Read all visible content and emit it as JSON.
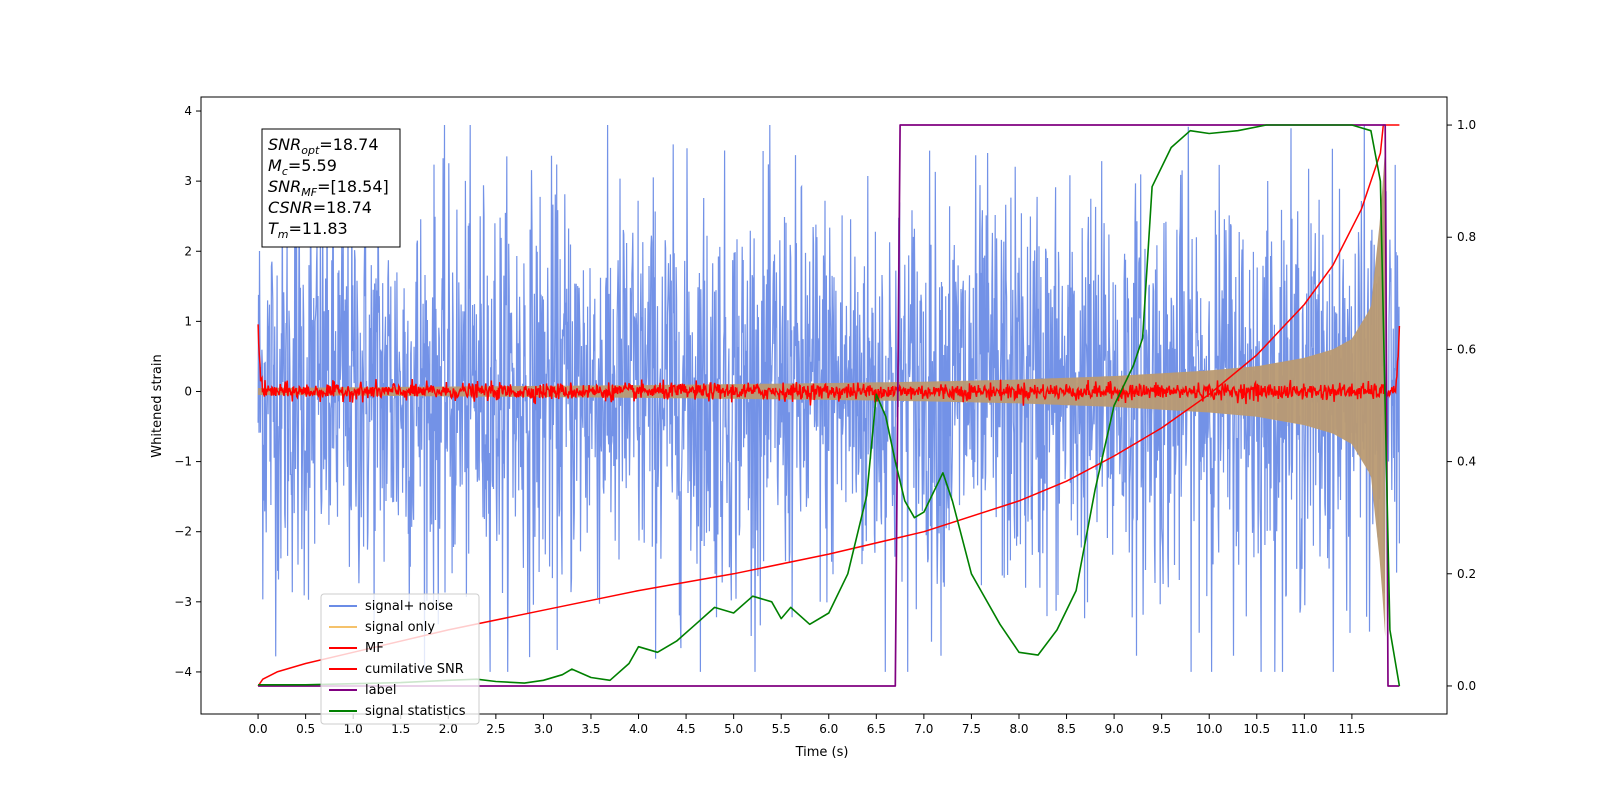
{
  "chart_data": {
    "type": "line",
    "xlabel": "Time (s)",
    "ylabel_left": "Whitened strain",
    "ylabel_right": "",
    "xlim": [
      -0.6,
      12.5
    ],
    "ylim_left": [
      -4.6,
      4.2
    ],
    "ylim_right": [
      -0.05,
      1.05
    ],
    "x_ticks": [
      "0.0",
      "0.5",
      "1.0",
      "1.5",
      "2.0",
      "2.5",
      "3.0",
      "3.5",
      "4.0",
      "4.5",
      "5.0",
      "5.5",
      "6.0",
      "6.5",
      "7.0",
      "7.5",
      "8.0",
      "8.5",
      "9.0",
      "9.5",
      "10.0",
      "10.5",
      "11.0",
      "11.5"
    ],
    "y_ticks_left": [
      "4",
      "3",
      "2",
      "1",
      "0",
      "−1",
      "−2",
      "−3",
      "−4"
    ],
    "y_ticks_right": [
      "1.0",
      "0.8",
      "0.6",
      "0.4",
      "0.2",
      "0.0"
    ],
    "grid": false,
    "legend_position": "lower-left",
    "annotation": {
      "lines": [
        {
          "sym": "SNR",
          "sub": "opt",
          "val": "=18.74"
        },
        {
          "sym": "M",
          "sub": "c",
          "val": "=5.59"
        },
        {
          "sym": "SNR",
          "sub": "MF",
          "val": "=[18.54]"
        },
        {
          "sym": "CSNR",
          "sub": "",
          "val": "=18.74"
        },
        {
          "sym": "T",
          "sub": "m",
          "val": "=11.83"
        }
      ]
    },
    "series": [
      {
        "name": "signal+ noise",
        "color": "#6b8ce6",
        "axis": "left",
        "style": "noise-band",
        "amplitude_typical": 2.0,
        "amplitude_max": 3.8,
        "x_range": [
          0.0,
          12.0
        ]
      },
      {
        "name": "signal only",
        "color": "#f5c26b",
        "axis": "left",
        "style": "chirp-envelope",
        "x": [
          0.0,
          2.0,
          4.0,
          6.0,
          7.0,
          8.0,
          9.0,
          10.0,
          10.5,
          11.0,
          11.3,
          11.5,
          11.7,
          11.8,
          11.85
        ],
        "envelope": [
          0.05,
          0.07,
          0.09,
          0.12,
          0.14,
          0.17,
          0.22,
          0.3,
          0.36,
          0.48,
          0.6,
          0.75,
          1.2,
          2.5,
          3.5
        ]
      },
      {
        "name": "MF",
        "color": "#ff0000",
        "axis": "left",
        "style": "mf-noise",
        "amplitude_typical": 0.06,
        "x": [
          0.0,
          0.02,
          0.05,
          11.95,
          11.98,
          12.0
        ],
        "y": [
          1.0,
          0.3,
          0.05,
          0.05,
          0.3,
          0.9
        ]
      },
      {
        "name": "cumilative SNR",
        "color": "#ff0000",
        "axis": "right",
        "x": [
          0.0,
          0.05,
          0.2,
          0.5,
          1.0,
          2.0,
          3.0,
          4.0,
          5.0,
          6.0,
          7.0,
          8.0,
          8.5,
          9.0,
          9.5,
          10.0,
          10.5,
          11.0,
          11.3,
          11.6,
          11.8,
          11.83,
          12.0
        ],
        "y": [
          0.0,
          0.012,
          0.025,
          0.04,
          0.06,
          0.1,
          0.135,
          0.17,
          0.2,
          0.235,
          0.275,
          0.33,
          0.365,
          0.41,
          0.46,
          0.52,
          0.59,
          0.68,
          0.75,
          0.85,
          0.95,
          1.0,
          1.0
        ]
      },
      {
        "name": "label",
        "color": "#800080",
        "axis": "right",
        "x": [
          0.0,
          6.7,
          6.75,
          11.85,
          11.88,
          12.0
        ],
        "y": [
          0.0,
          0.0,
          1.0,
          1.0,
          0.0,
          0.0
        ]
      },
      {
        "name": "signal statistics",
        "color": "#008000",
        "axis": "right",
        "x": [
          0.0,
          0.5,
          1.0,
          1.5,
          2.0,
          2.3,
          2.5,
          2.8,
          3.0,
          3.2,
          3.3,
          3.5,
          3.7,
          3.9,
          4.0,
          4.2,
          4.4,
          4.6,
          4.8,
          5.0,
          5.2,
          5.4,
          5.5,
          5.6,
          5.8,
          6.0,
          6.2,
          6.4,
          6.5,
          6.6,
          6.7,
          6.8,
          6.9,
          7.0,
          7.2,
          7.3,
          7.5,
          7.6,
          7.8,
          8.0,
          8.2,
          8.4,
          8.6,
          8.8,
          9.0,
          9.2,
          9.3,
          9.4,
          9.6,
          9.8,
          10.0,
          10.3,
          10.6,
          11.0,
          11.5,
          11.7,
          11.8,
          11.9,
          12.0
        ],
        "y": [
          0.002,
          0.002,
          0.004,
          0.006,
          0.01,
          0.012,
          0.008,
          0.005,
          0.01,
          0.02,
          0.03,
          0.015,
          0.01,
          0.04,
          0.07,
          0.06,
          0.08,
          0.11,
          0.14,
          0.13,
          0.16,
          0.15,
          0.12,
          0.14,
          0.11,
          0.13,
          0.2,
          0.34,
          0.52,
          0.48,
          0.4,
          0.33,
          0.3,
          0.31,
          0.38,
          0.33,
          0.2,
          0.17,
          0.11,
          0.06,
          0.055,
          0.1,
          0.17,
          0.35,
          0.5,
          0.57,
          0.62,
          0.89,
          0.96,
          0.99,
          0.985,
          0.99,
          1.0,
          1.0,
          1.0,
          0.99,
          0.9,
          0.1,
          0.0
        ]
      }
    ]
  }
}
